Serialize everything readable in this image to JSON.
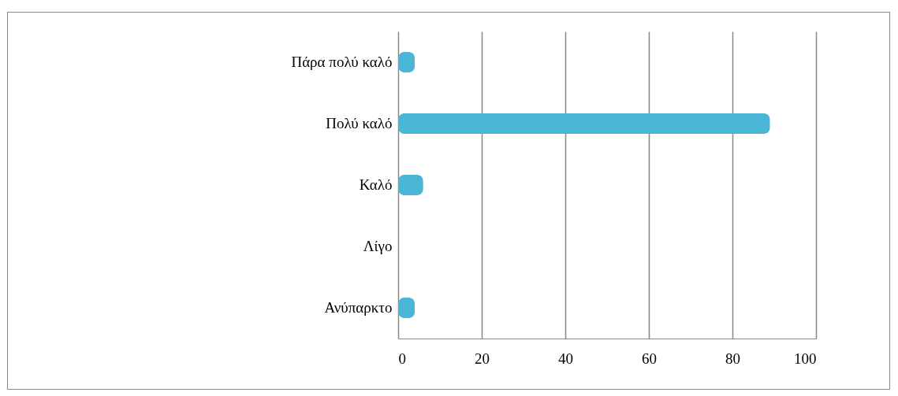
{
  "chart_data": {
    "type": "bar",
    "orientation": "horizontal",
    "categories": [
      "Πάρα πολύ καλό",
      "Πολύ καλό",
      "Καλό",
      "Λίγο",
      "Ανύπαρκτο"
    ],
    "values": [
      4,
      89,
      6,
      0,
      4
    ],
    "color": "#4bb5d6",
    "xlim": [
      0,
      100
    ],
    "xticks": [
      0,
      20,
      40,
      60,
      80,
      100
    ],
    "grid": "x"
  }
}
